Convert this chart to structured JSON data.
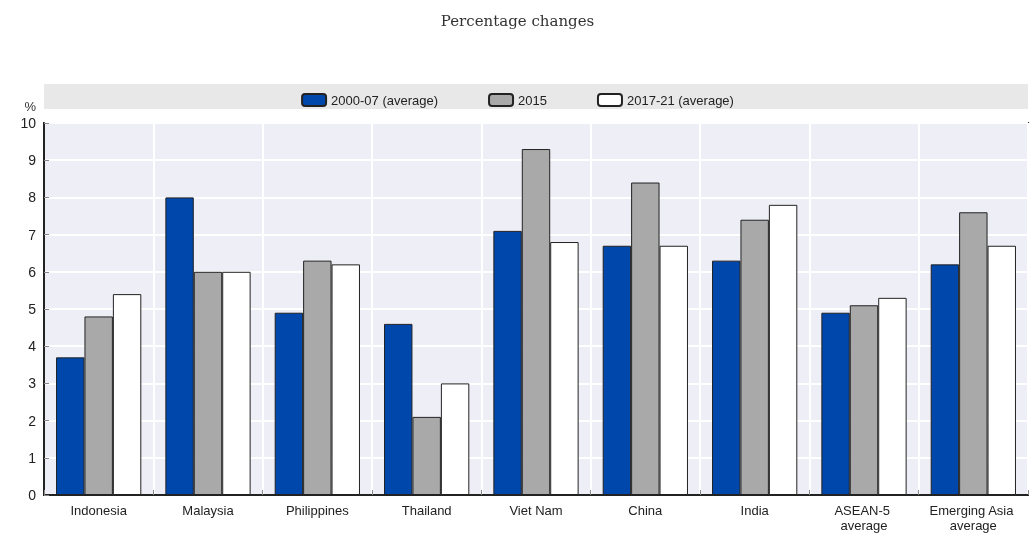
{
  "chart_data": {
    "type": "bar",
    "subtitle": "Percentage changes",
    "ylabel": "%",
    "categories": [
      "Indonesia",
      "Malaysia",
      "Philippines",
      "Thailand",
      "Viet Nam",
      "China",
      "India",
      "ASEAN-5 average",
      "Emerging Asia average"
    ],
    "series": [
      {
        "name": "2000-07 (average)",
        "color": "#0047ab",
        "values": [
          3.7,
          8.0,
          4.9,
          4.6,
          7.1,
          6.7,
          6.3,
          4.9,
          6.2
        ]
      },
      {
        "name": "2015",
        "color": "#a9a9a9",
        "values": [
          4.8,
          6.0,
          6.3,
          2.1,
          9.3,
          8.4,
          7.4,
          5.1,
          7.6
        ]
      },
      {
        "name": "2017-21 (average)",
        "color": "#ffffff",
        "values": [
          5.4,
          6.0,
          6.2,
          3.0,
          6.8,
          6.7,
          7.8,
          5.3,
          6.7
        ]
      }
    ],
    "ylim": [
      0,
      10
    ],
    "yticks": [
      0,
      1,
      2,
      3,
      4,
      5,
      6,
      7,
      8,
      9,
      10
    ],
    "grid": true,
    "legend": "top"
  }
}
